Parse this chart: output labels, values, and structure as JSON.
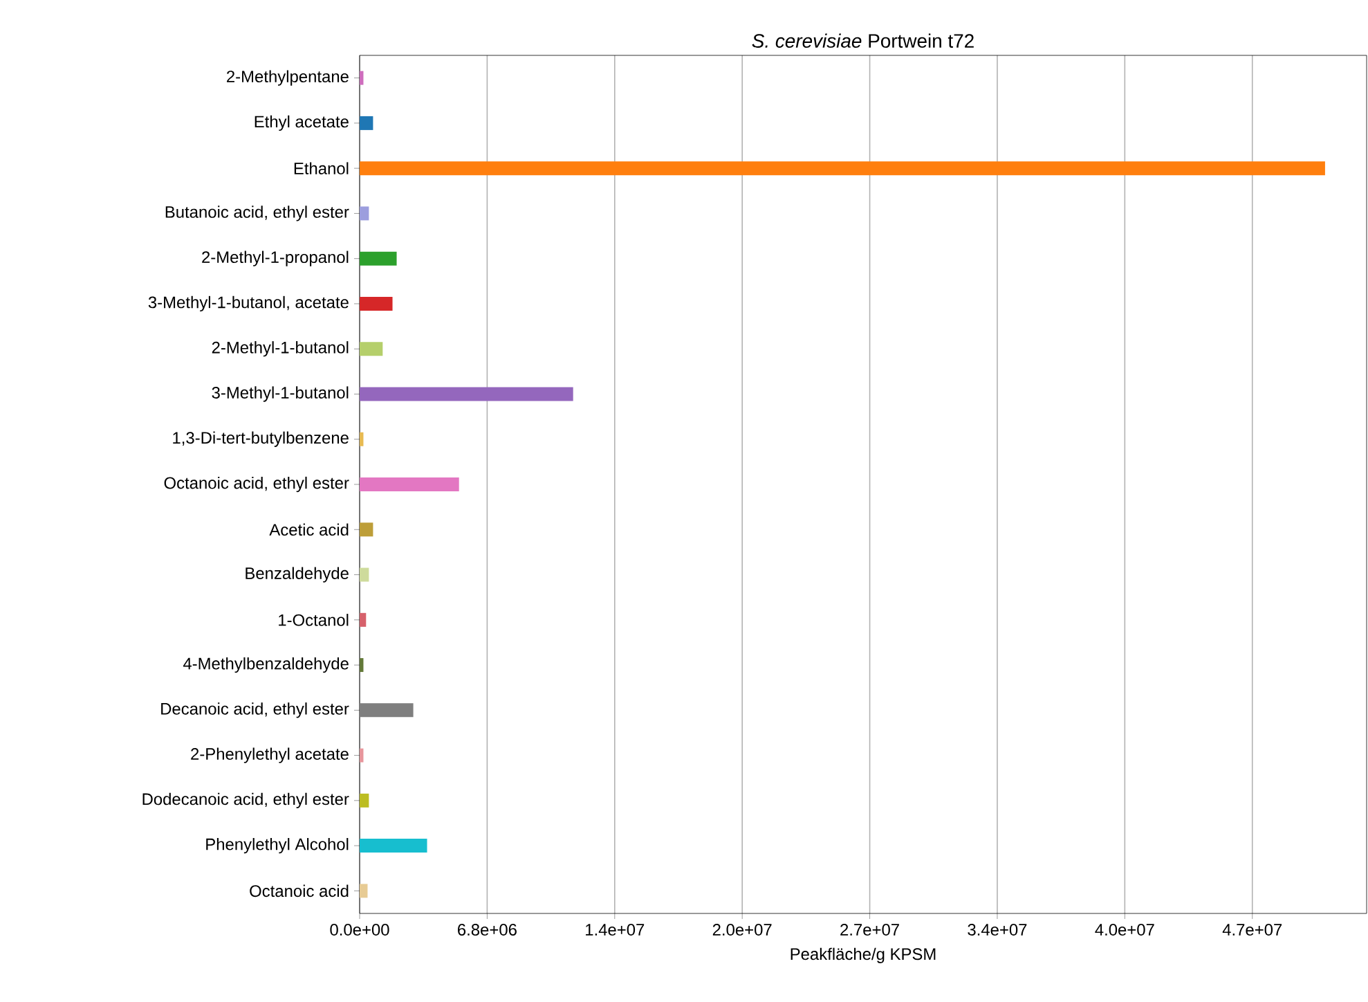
{
  "chart_data": {
    "type": "bar",
    "orientation": "horizontal",
    "title": "*S. cerevisiae* Portwein t72",
    "xlabel": "Peakfläche/g KPSM",
    "categories": [
      "2-Methylpentane",
      "Ethyl acetate",
      "Ethanol",
      "Butanoic acid, ethyl ester",
      "2-Methyl-1-propanol",
      "3-Methyl-1-butanol, acetate",
      "2-Methyl-1-butanol",
      "3-Methyl-1-butanol",
      "1,3-Di-tert-butylbenzene",
      "Octanoic acid, ethyl ester",
      "Acetic acid",
      "Benzaldehyde",
      "1-Octanol",
      "4-Methylbenzaldehyde",
      "Decanoic acid, ethyl ester",
      "2-Phenylethyl acetate",
      "Dodecanoic acid, ethyl ester",
      "Phenylethyl Alcohol",
      "Octanoic acid"
    ],
    "values": [
      200000,
      710000,
      51100000,
      490000,
      1960000,
      1740000,
      1220000,
      11300000,
      200000,
      5260000,
      710000,
      490000,
      340000,
      200000,
      2840000,
      200000,
      490000,
      3570000,
      420000
    ],
    "colors": [
      "#ce6dbd",
      "#1f77b4",
      "#ff7f0e",
      "#9c9ede",
      "#2ca02c",
      "#d62728",
      "#b5cf6b",
      "#9467bd",
      "#e7ba52",
      "#e377c2",
      "#bd9e39",
      "#cedb9c",
      "#d6616b",
      "#637939",
      "#7f7f7f",
      "#e7969c",
      "#bcbd22",
      "#17becf",
      "#e7cb94"
    ],
    "xlim": [
      0,
      53300000
    ],
    "xticks": [
      {
        "value": 0,
        "label": "0.0e+00"
      },
      {
        "value": 6750000,
        "label": "6.8e+06"
      },
      {
        "value": 13500000,
        "label": "1.4e+07"
      },
      {
        "value": 20250000,
        "label": "2.0e+07"
      },
      {
        "value": 27000000,
        "label": "2.7e+07"
      },
      {
        "value": 33750000,
        "label": "3.4e+07"
      },
      {
        "value": 40500000,
        "label": "4.0e+07"
      },
      {
        "value": 47250000,
        "label": "4.7e+07"
      }
    ],
    "grid": "x"
  }
}
